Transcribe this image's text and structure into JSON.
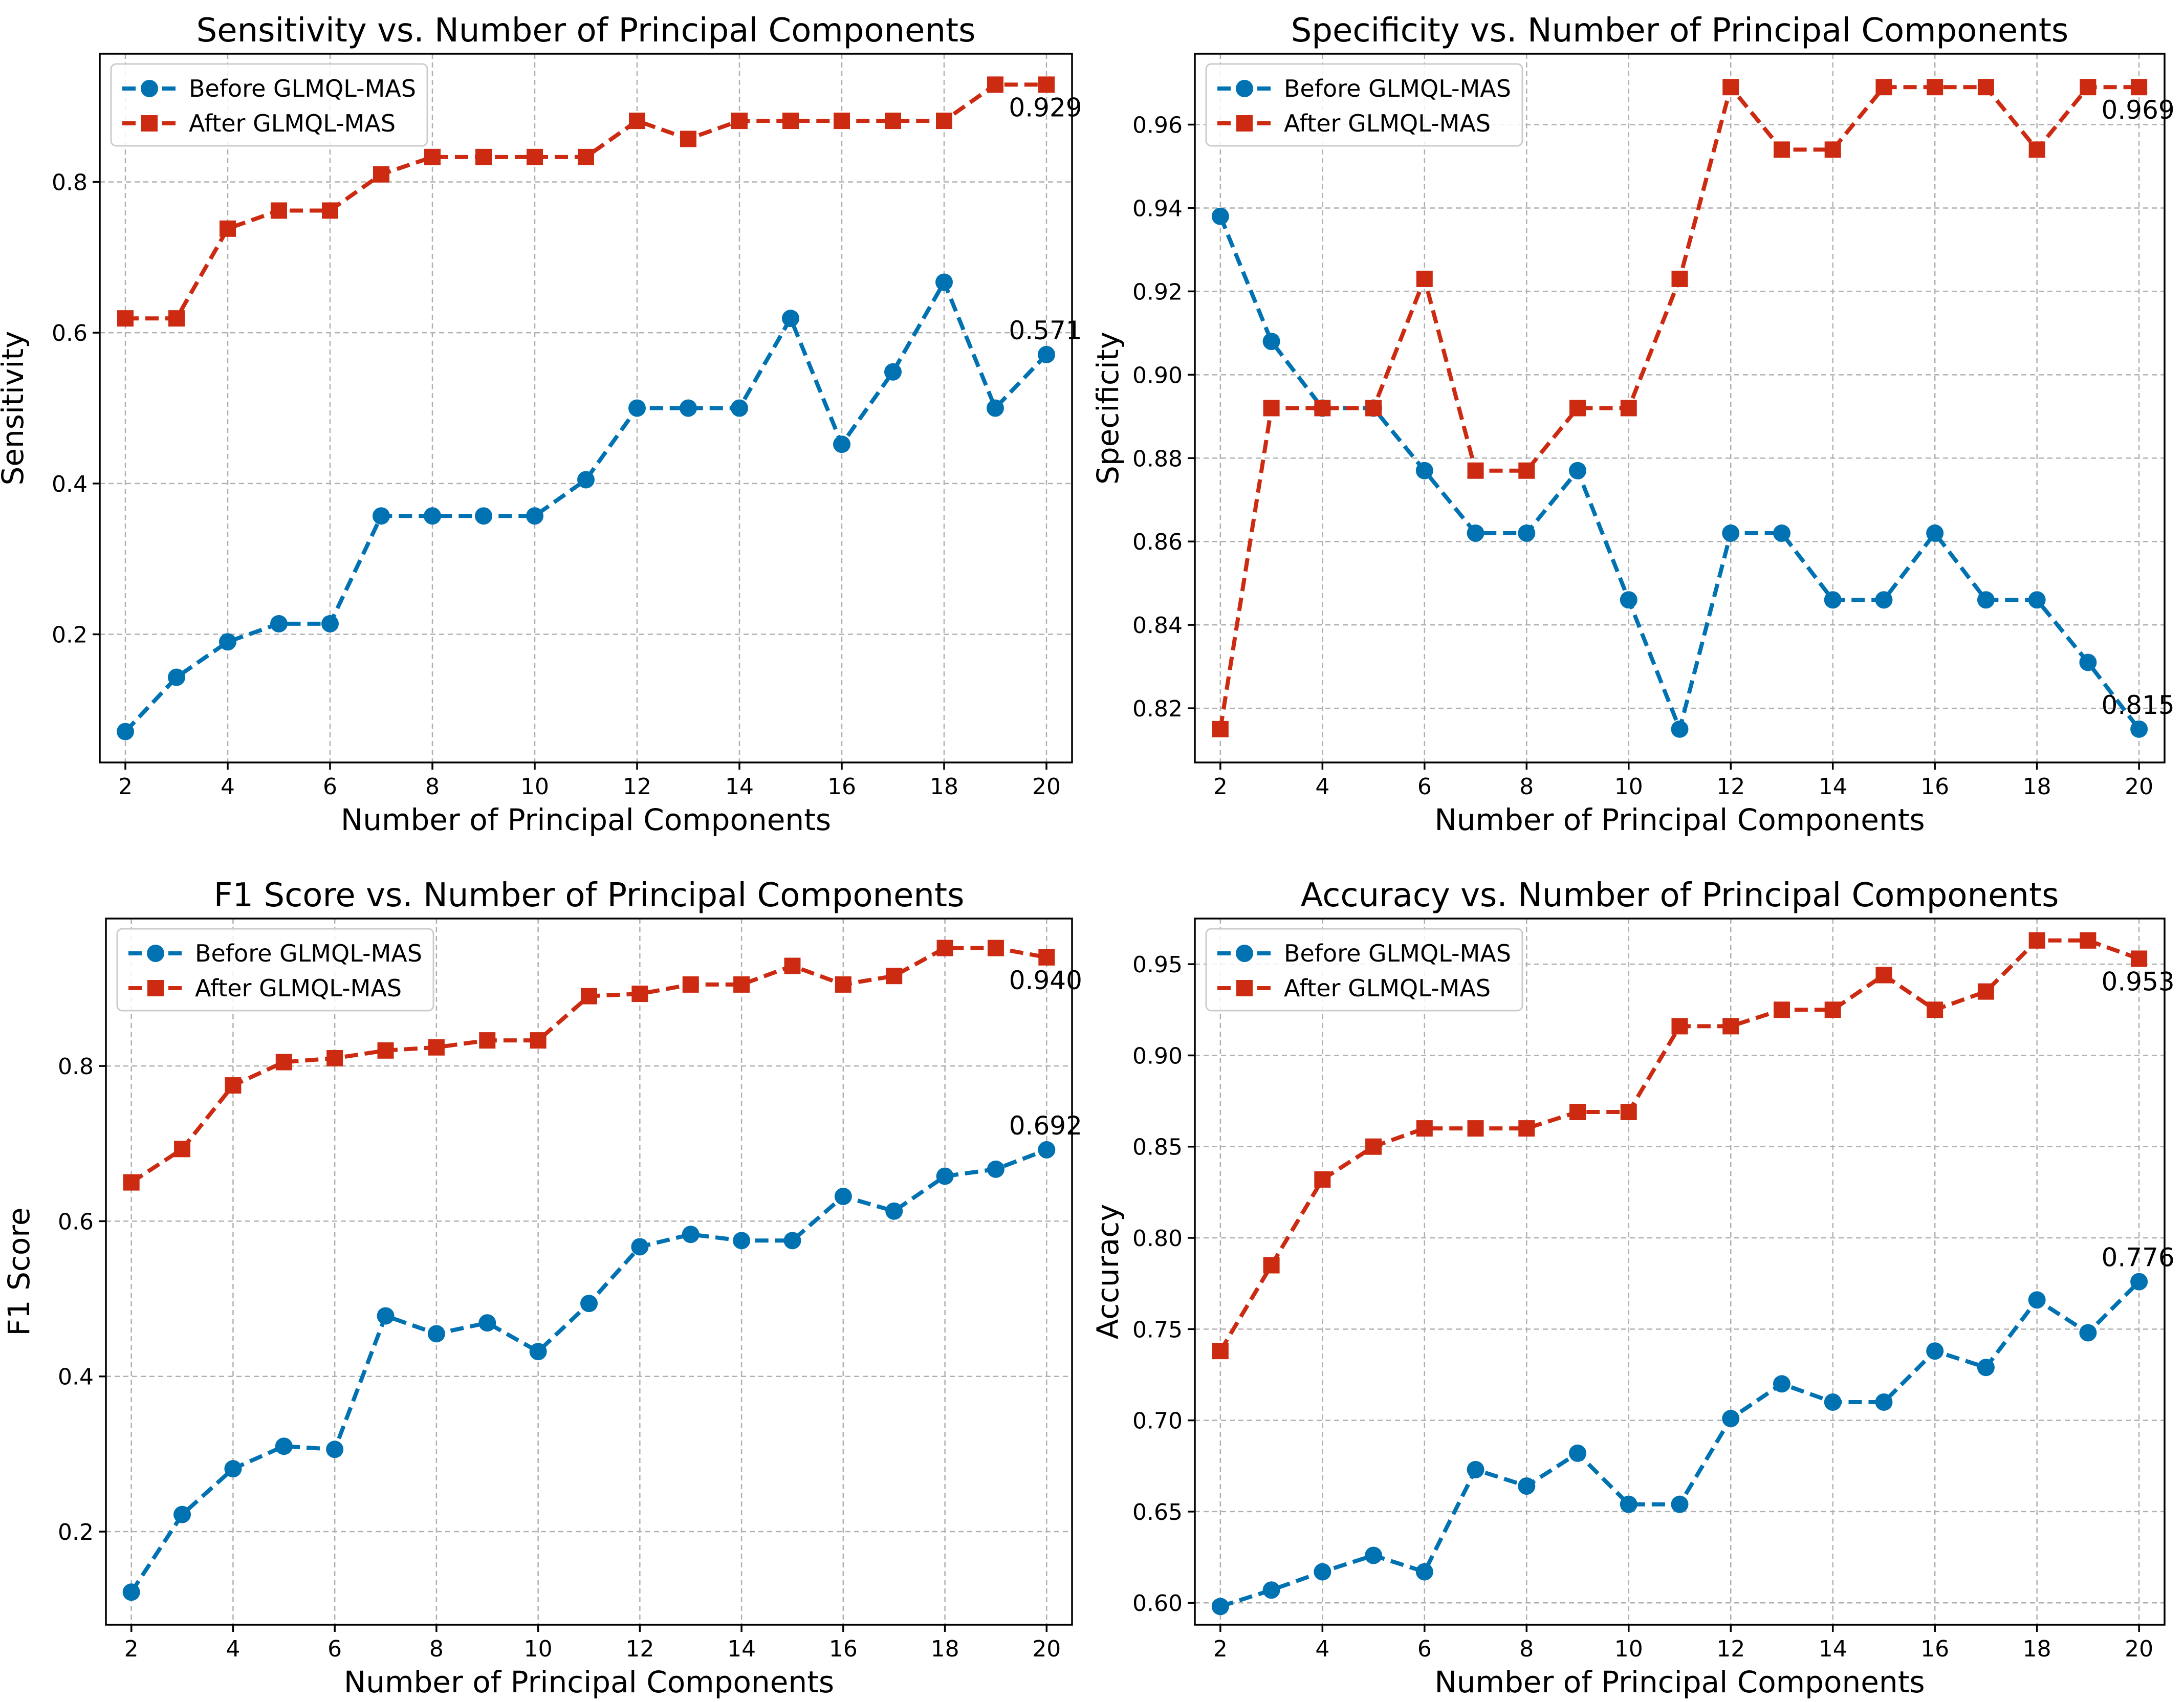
{
  "chart_data": [
    {
      "type": "line",
      "title": "Sensitivity vs. Number of Principal Components",
      "xlabel": "Number of Principal Components",
      "ylabel": "Sensitivity",
      "x": [
        2,
        3,
        4,
        5,
        6,
        7,
        8,
        9,
        10,
        11,
        12,
        13,
        14,
        15,
        16,
        17,
        18,
        19,
        20
      ],
      "xlim": [
        1.5,
        20.5
      ],
      "ylim": [
        0.03,
        0.97
      ],
      "xticks": [
        2,
        4,
        6,
        8,
        10,
        12,
        14,
        16,
        18,
        20
      ],
      "yticks": [
        0.2,
        0.4,
        0.6,
        0.8
      ],
      "ytick_labels": [
        "0.2",
        "0.4",
        "0.6",
        "0.8"
      ],
      "grid": true,
      "legend_position": "top-left",
      "series": [
        {
          "name": "Before GLMQL-MAS",
          "color": "#0072b2",
          "marker": "circle",
          "values": [
            0.071,
            0.143,
            0.19,
            0.214,
            0.214,
            0.357,
            0.357,
            0.357,
            0.357,
            0.405,
            0.5,
            0.5,
            0.5,
            0.619,
            0.452,
            0.548,
            0.667,
            0.5,
            0.571
          ]
        },
        {
          "name": "After GLMQL-MAS",
          "color": "#cc2a11",
          "marker": "square",
          "values": [
            0.619,
            0.619,
            0.738,
            0.762,
            0.762,
            0.81,
            0.833,
            0.833,
            0.833,
            0.833,
            0.881,
            0.857,
            0.881,
            0.881,
            0.881,
            0.881,
            0.881,
            0.929,
            0.929
          ]
        }
      ],
      "annotations": [
        {
          "text": "0.929",
          "x": 20,
          "y": 0.929,
          "placement": "below"
        },
        {
          "text": "0.571",
          "x": 20,
          "y": 0.571,
          "placement": "above"
        }
      ]
    },
    {
      "type": "line",
      "title": "Specificity vs. Number of Principal Components",
      "xlabel": "Number of Principal Components",
      "ylabel": "Specificity",
      "x": [
        2,
        3,
        4,
        5,
        6,
        7,
        8,
        9,
        10,
        11,
        12,
        13,
        14,
        15,
        16,
        17,
        18,
        19,
        20
      ],
      "xlim": [
        1.5,
        20.5
      ],
      "ylim": [
        0.807,
        0.977
      ],
      "xticks": [
        2,
        4,
        6,
        8,
        10,
        12,
        14,
        16,
        18,
        20
      ],
      "yticks": [
        0.82,
        0.84,
        0.86,
        0.88,
        0.9,
        0.92,
        0.94,
        0.96
      ],
      "ytick_labels": [
        "0.82",
        "0.84",
        "0.86",
        "0.88",
        "0.90",
        "0.92",
        "0.94",
        "0.96"
      ],
      "grid": true,
      "legend_position": "top-left",
      "series": [
        {
          "name": "Before GLMQL-MAS",
          "color": "#0072b2",
          "marker": "circle",
          "values": [
            0.938,
            0.908,
            0.892,
            0.892,
            0.877,
            0.862,
            0.862,
            0.877,
            0.846,
            0.815,
            0.862,
            0.862,
            0.846,
            0.846,
            0.862,
            0.846,
            0.846,
            0.831,
            0.815
          ]
        },
        {
          "name": "After GLMQL-MAS",
          "color": "#cc2a11",
          "marker": "square",
          "values": [
            0.815,
            0.892,
            0.892,
            0.892,
            0.923,
            0.877,
            0.877,
            0.892,
            0.892,
            0.923,
            0.969,
            0.954,
            0.954,
            0.969,
            0.969,
            0.969,
            0.954,
            0.969,
            0.969
          ]
        }
      ],
      "annotations": [
        {
          "text": "0.969",
          "x": 20,
          "y": 0.969,
          "placement": "below"
        },
        {
          "text": "0.815",
          "x": 20,
          "y": 0.815,
          "placement": "above"
        }
      ]
    },
    {
      "type": "line",
      "title": "F1 Score vs. Number of Principal Components",
      "xlabel": "Number of Principal Components",
      "ylabel": "F1 Score",
      "x": [
        2,
        3,
        4,
        5,
        6,
        7,
        8,
        9,
        10,
        11,
        12,
        13,
        14,
        15,
        16,
        17,
        18,
        19,
        20
      ],
      "xlim": [
        1.5,
        20.5
      ],
      "ylim": [
        0.08,
        0.99
      ],
      "xticks": [
        2,
        4,
        6,
        8,
        10,
        12,
        14,
        16,
        18,
        20
      ],
      "yticks": [
        0.2,
        0.4,
        0.6,
        0.8
      ],
      "ytick_labels": [
        "0.2",
        "0.4",
        "0.6",
        "0.8"
      ],
      "grid": true,
      "legend_position": "top-left",
      "series": [
        {
          "name": "Before GLMQL-MAS",
          "color": "#0072b2",
          "marker": "circle",
          "values": [
            0.122,
            0.222,
            0.281,
            0.31,
            0.306,
            0.478,
            0.455,
            0.469,
            0.432,
            0.494,
            0.567,
            0.583,
            0.575,
            0.575,
            0.632,
            0.613,
            0.658,
            0.667,
            0.692
          ]
        },
        {
          "name": "After GLMQL-MAS",
          "color": "#cc2a11",
          "marker": "square",
          "values": [
            0.65,
            0.693,
            0.775,
            0.805,
            0.81,
            0.82,
            0.824,
            0.833,
            0.833,
            0.89,
            0.893,
            0.905,
            0.905,
            0.929,
            0.905,
            0.916,
            0.952,
            0.952,
            0.94
          ]
        }
      ],
      "annotations": [
        {
          "text": "0.940",
          "x": 20,
          "y": 0.94,
          "placement": "below"
        },
        {
          "text": "0.692",
          "x": 20,
          "y": 0.692,
          "placement": "above"
        }
      ]
    },
    {
      "type": "line",
      "title": "Accuracy vs. Number of Principal Components",
      "xlabel": "Number of Principal Components",
      "ylabel": "Accuracy",
      "x": [
        2,
        3,
        4,
        5,
        6,
        7,
        8,
        9,
        10,
        11,
        12,
        13,
        14,
        15,
        16,
        17,
        18,
        19,
        20
      ],
      "xlim": [
        1.5,
        20.5
      ],
      "ylim": [
        0.588,
        0.975
      ],
      "xticks": [
        2,
        4,
        6,
        8,
        10,
        12,
        14,
        16,
        18,
        20
      ],
      "yticks": [
        0.6,
        0.65,
        0.7,
        0.75,
        0.8,
        0.85,
        0.9,
        0.95
      ],
      "ytick_labels": [
        "0.60",
        "0.65",
        "0.70",
        "0.75",
        "0.80",
        "0.85",
        "0.90",
        "0.95"
      ],
      "grid": true,
      "legend_position": "top-left",
      "series": [
        {
          "name": "Before GLMQL-MAS",
          "color": "#0072b2",
          "marker": "circle",
          "values": [
            0.598,
            0.607,
            0.617,
            0.626,
            0.617,
            0.673,
            0.664,
            0.682,
            0.654,
            0.654,
            0.701,
            0.72,
            0.71,
            0.71,
            0.738,
            0.729,
            0.766,
            0.748,
            0.776
          ]
        },
        {
          "name": "After GLMQL-MAS",
          "color": "#cc2a11",
          "marker": "square",
          "values": [
            0.738,
            0.785,
            0.832,
            0.85,
            0.86,
            0.86,
            0.86,
            0.869,
            0.869,
            0.916,
            0.916,
            0.925,
            0.925,
            0.944,
            0.925,
            0.935,
            0.963,
            0.963,
            0.953
          ]
        }
      ],
      "annotations": [
        {
          "text": "0.953",
          "x": 20,
          "y": 0.953,
          "placement": "below"
        },
        {
          "text": "0.776",
          "x": 20,
          "y": 0.776,
          "placement": "above"
        }
      ]
    }
  ]
}
